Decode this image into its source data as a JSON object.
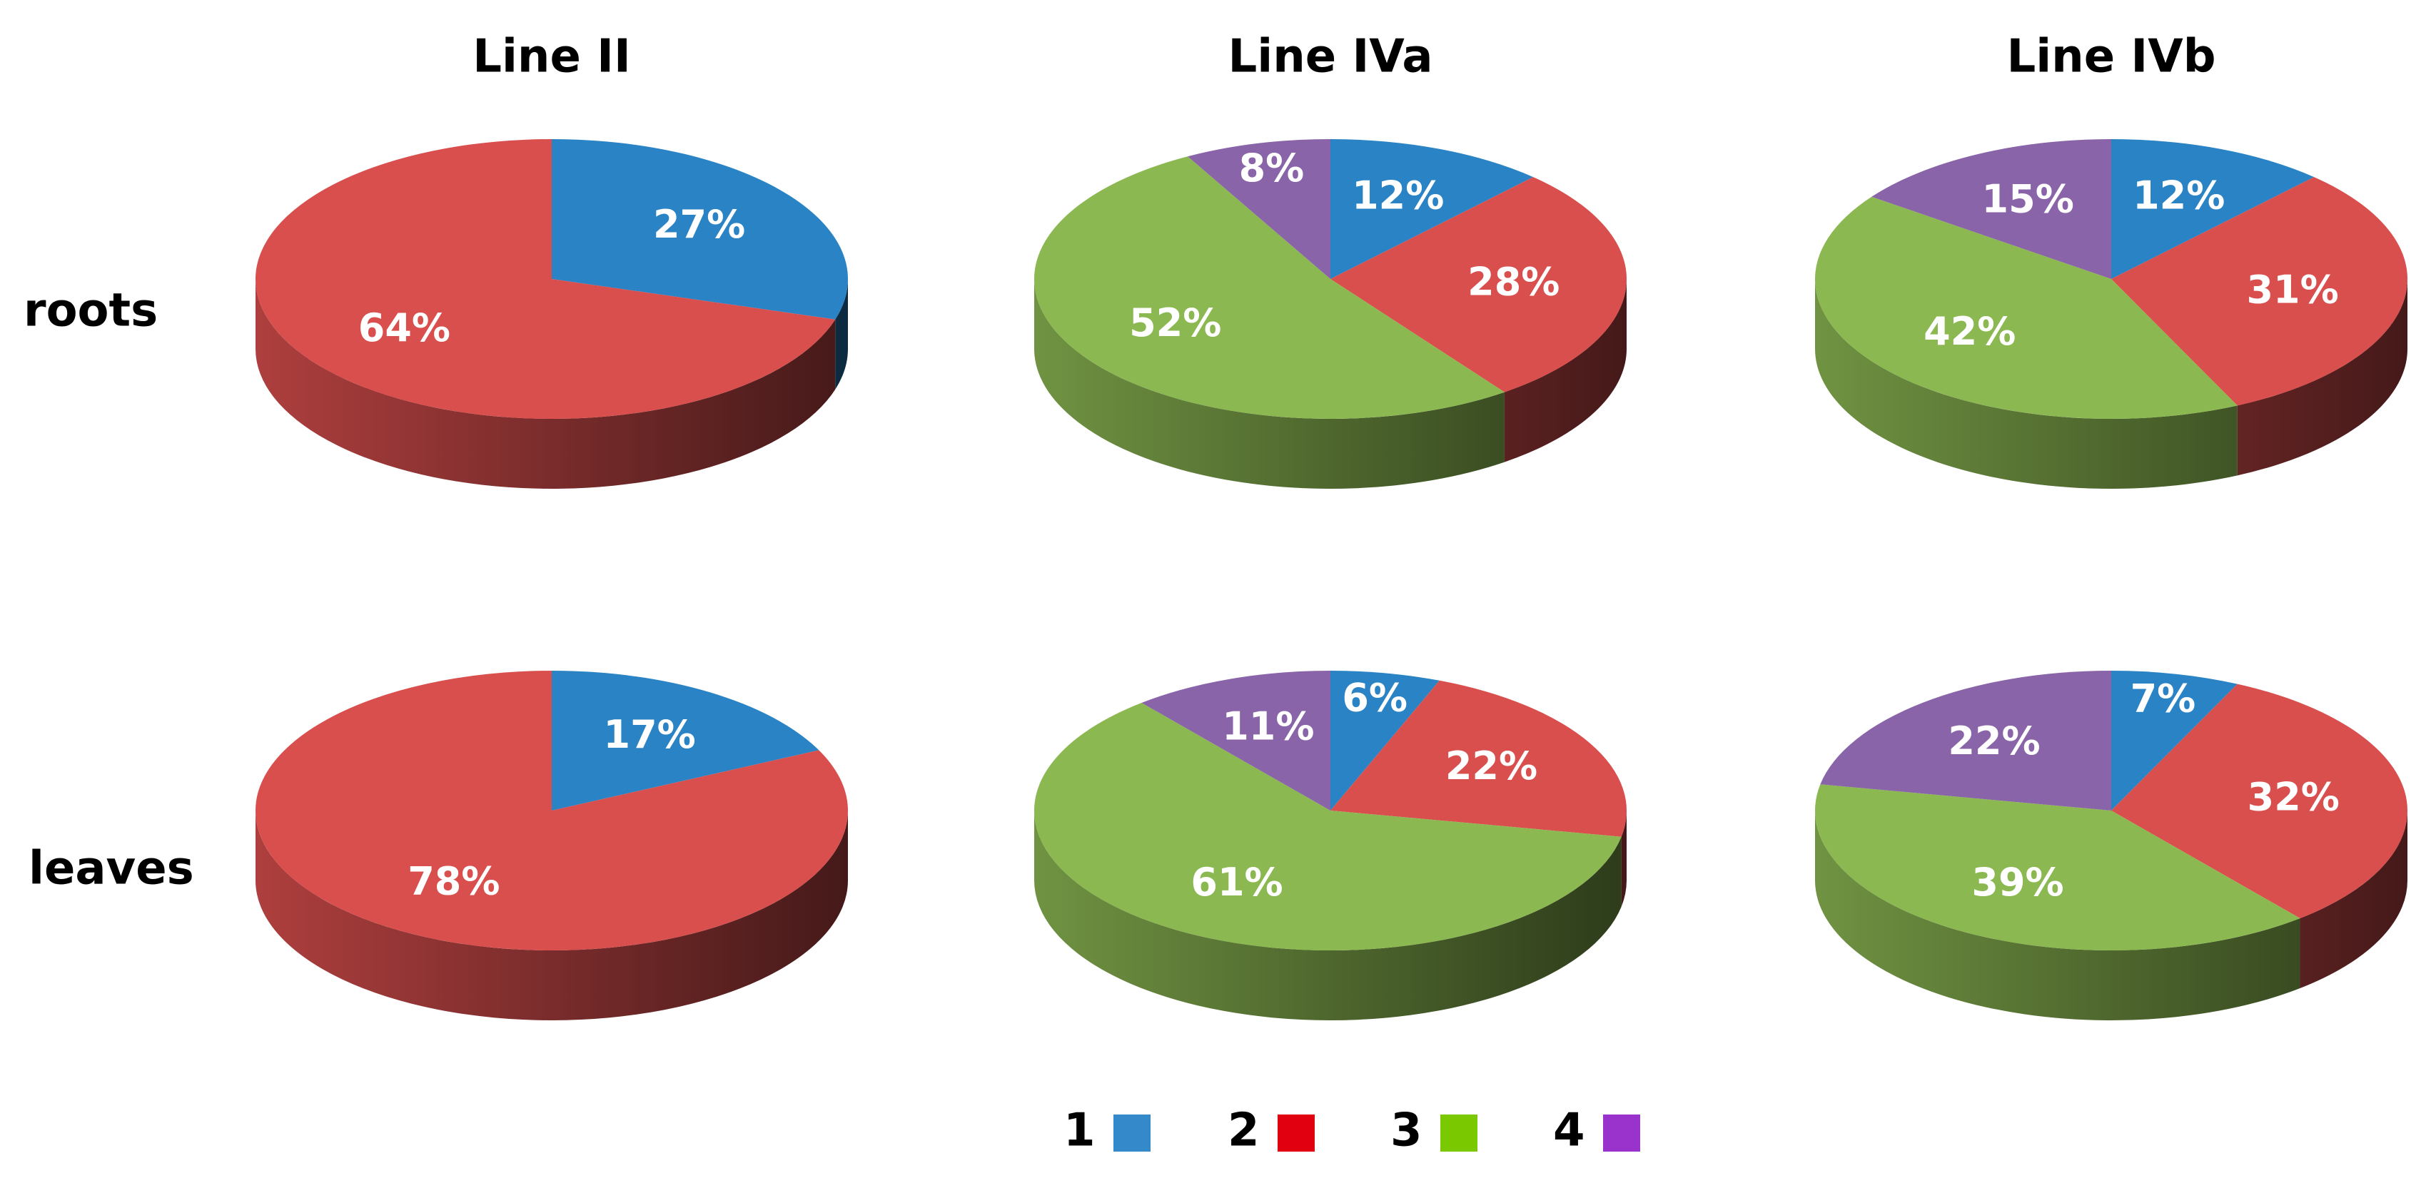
{
  "column_titles": [
    "Line II",
    "Line IVa",
    "Line IVb"
  ],
  "row_labels": [
    "roots",
    "leaves"
  ],
  "legend": {
    "labels": [
      "1",
      "2",
      "3",
      "4"
    ],
    "colors": [
      "#3389c9",
      "#e0000f",
      "#7ac800",
      "#9933cc"
    ]
  },
  "chart_data": [
    {
      "type": "pie",
      "values": [
        27,
        64
      ],
      "value_labels": [
        "27%",
        "64%"
      ],
      "colors": [
        "#2a83c4",
        "#d94f4d"
      ]
    },
    {
      "type": "pie",
      "values": [
        12,
        28,
        52,
        8
      ],
      "value_labels": [
        "12%",
        "28%",
        "52%",
        "8%"
      ],
      "colors": [
        "#2a83c4",
        "#d94f4d",
        "#8cb852",
        "#8964a8"
      ]
    },
    {
      "type": "pie",
      "values": [
        12,
        31,
        42,
        15
      ],
      "value_labels": [
        "12%",
        "31%",
        "42%",
        "15%"
      ],
      "colors": [
        "#2a83c4",
        "#d94f4d",
        "#8cb852",
        "#8964a8"
      ]
    },
    {
      "type": "pie",
      "values": [
        17,
        78
      ],
      "value_labels": [
        "17%",
        "78%"
      ],
      "colors": [
        "#2a83c4",
        "#d94f4d"
      ]
    },
    {
      "type": "pie",
      "values": [
        6,
        22,
        61,
        11
      ],
      "value_labels": [
        "6%",
        "22%",
        "61%",
        "11%"
      ],
      "colors": [
        "#2a83c4",
        "#d94f4d",
        "#8cb852",
        "#8964a8"
      ]
    },
    {
      "type": "pie",
      "values": [
        7,
        32,
        39,
        22
      ],
      "value_labels": [
        "7%",
        "32%",
        "39%",
        "22%"
      ],
      "colors": [
        "#2a83c4",
        "#d94f4d",
        "#8cb852",
        "#8964a8"
      ]
    }
  ]
}
